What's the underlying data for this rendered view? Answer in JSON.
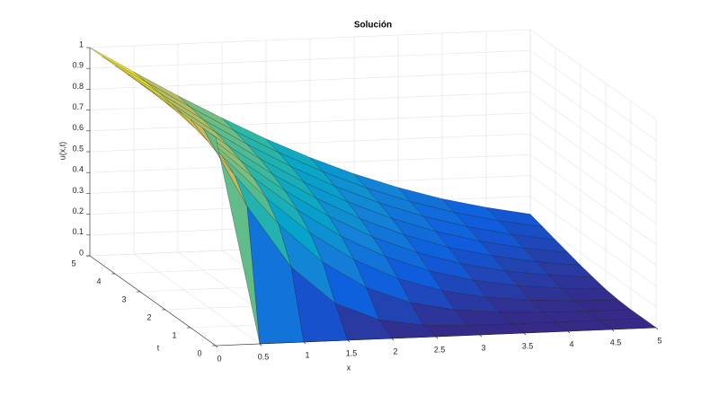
{
  "chart_data": {
    "type": "surface",
    "title": "Solución",
    "xlabel": "x",
    "ylabel": "t",
    "zlabel": "u(x,t)",
    "x": [
      0,
      0.5,
      1,
      1.5,
      2,
      2.5,
      3,
      3.5,
      4,
      4.5,
      5
    ],
    "t": [
      0,
      0.5,
      1,
      1.5,
      2,
      2.5,
      3,
      3.5,
      4,
      4.5,
      5
    ],
    "z": [
      [
        1,
        0,
        0,
        0,
        0,
        0,
        0,
        0,
        0,
        0,
        0
      ],
      [
        1,
        0.617,
        0.317,
        0.134,
        0.046,
        0.012,
        0.003,
        0,
        0,
        0,
        0
      ],
      [
        1,
        0.724,
        0.48,
        0.289,
        0.157,
        0.077,
        0.034,
        0.013,
        0.005,
        0.001,
        0
      ],
      [
        1,
        0.773,
        0.564,
        0.386,
        0.248,
        0.149,
        0.083,
        0.043,
        0.02,
        0.009,
        0.004
      ],
      [
        1,
        0.802,
        0.617,
        0.453,
        0.317,
        0.212,
        0.134,
        0.081,
        0.046,
        0.025,
        0.012
      ],
      [
        1,
        0.823,
        0.655,
        0.503,
        0.371,
        0.263,
        0.18,
        0.117,
        0.074,
        0.045,
        0.026
      ],
      [
        1,
        0.838,
        0.683,
        0.54,
        0.414,
        0.307,
        0.221,
        0.153,
        0.103,
        0.066,
        0.041
      ],
      [
        1,
        0.85,
        0.706,
        0.571,
        0.449,
        0.345,
        0.257,
        0.186,
        0.131,
        0.089,
        0.059
      ],
      [
        1,
        0.86,
        0.724,
        0.596,
        0.48,
        0.377,
        0.289,
        0.216,
        0.157,
        0.112,
        0.077
      ],
      [
        1,
        0.868,
        0.739,
        0.617,
        0.505,
        0.405,
        0.317,
        0.243,
        0.182,
        0.134,
        0.096
      ],
      [
        1,
        0.874,
        0.751,
        0.636,
        0.527,
        0.429,
        0.342,
        0.268,
        0.205,
        0.155,
        0.114
      ]
    ],
    "xlim": [
      0,
      5
    ],
    "ylim": [
      0,
      5
    ],
    "zlim": [
      0,
      1
    ],
    "xticks": [
      0,
      0.5,
      1,
      1.5,
      2,
      2.5,
      3,
      3.5,
      4,
      4.5,
      5
    ],
    "yticks": [
      0,
      1,
      2,
      3,
      4,
      5
    ],
    "zticks": [
      0,
      0.1,
      0.2,
      0.3,
      0.4,
      0.5,
      0.6,
      0.7,
      0.8,
      0.9,
      1
    ],
    "grid": true,
    "colormap": [
      "#352a87",
      "#0f5cdd",
      "#1481d6",
      "#06a4ca",
      "#2eb7a4",
      "#87bf77",
      "#d1bb59",
      "#f9fb0e"
    ]
  }
}
